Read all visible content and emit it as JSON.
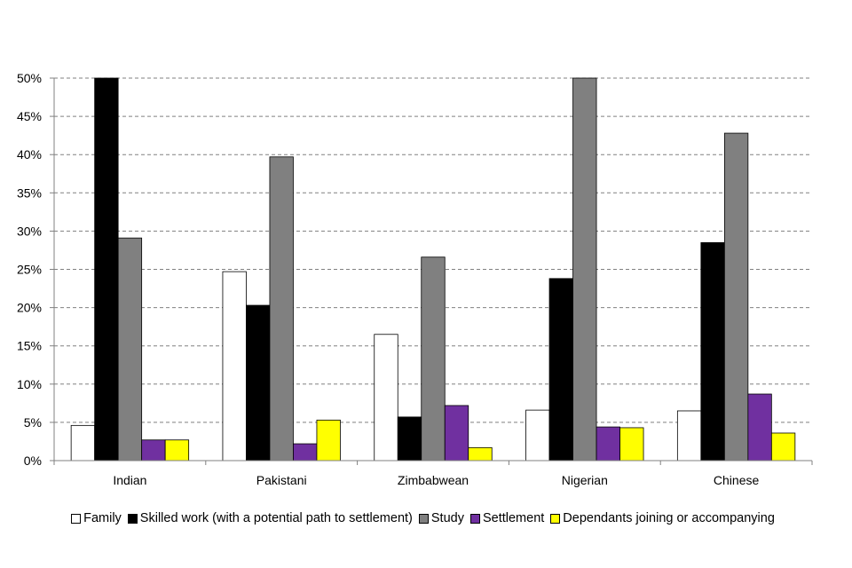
{
  "chart_data": {
    "type": "bar",
    "title": "",
    "xlabel": "",
    "ylabel": "",
    "ylim": [
      0,
      50
    ],
    "yticks": [
      "0%",
      "5%",
      "10%",
      "15%",
      "20%",
      "25%",
      "30%",
      "35%",
      "40%",
      "45%",
      "50%"
    ],
    "grid": true,
    "legend_position": "bottom",
    "categories": [
      "Indian",
      "Pakistani",
      "Zimbabwean",
      "Nigerian",
      "Chinese"
    ],
    "series": [
      {
        "name": "Family",
        "color": "#ffffff",
        "values": [
          4.6,
          24.7,
          16.5,
          6.6,
          6.5
        ]
      },
      {
        "name": "Skilled work (with a potential path to settlement)",
        "color": "#000000",
        "values": [
          50,
          20.3,
          5.7,
          23.8,
          28.5
        ]
      },
      {
        "name": "Study",
        "color": "#808080",
        "values": [
          29.1,
          39.7,
          26.6,
          50,
          42.8
        ]
      },
      {
        "name": "Settlement",
        "color": "#7030a0",
        "values": [
          2.7,
          2.2,
          7.2,
          4.4,
          8.7
        ]
      },
      {
        "name": "Dependants joining or accompanying",
        "color": "#ffff00",
        "values": [
          2.7,
          5.3,
          1.7,
          4.3,
          3.6
        ]
      }
    ]
  }
}
